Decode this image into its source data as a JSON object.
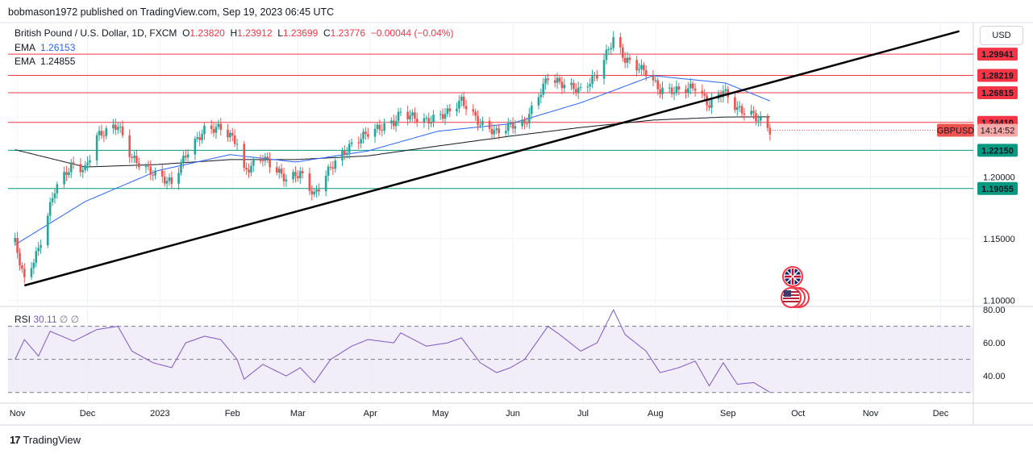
{
  "header": {
    "published": "bobmason1972 published on TradingView.com, Sep 19, 2023 06:45 UTC",
    "symbol_title": "British Pound / U.S. Dollar, 1D, FXCM",
    "o_label": "O",
    "o_value": "1.23820",
    "h_label": "H",
    "h_value": "1.23912",
    "l_label": "L",
    "l_value": "1.23699",
    "c_label": "C",
    "c_value": "1.23776",
    "change": "−0.00044 (−0.04%)",
    "ema1_label": "EMA",
    "ema1_value": "1.26153",
    "ema2_label": "EMA",
    "ema2_value": "1.24855"
  },
  "currency_button": "USD",
  "footer": {
    "brand": "TradingView",
    "logo": "17"
  },
  "rsi": {
    "label": "RSI",
    "value": "30.11",
    "na1": "∅",
    "na2": "∅"
  },
  "colors": {
    "up": "#26a69a",
    "down": "#ef5350",
    "ema_fast": "#2962ff",
    "ema_slow": "#131722",
    "resistance": "#f23645",
    "support": "#089981",
    "rsi_line": "#7e57c2",
    "rsi_band": "#ede7f6"
  },
  "icons": {
    "flag_gb": "gb-flag-icon",
    "flag_us": "us-flag-icon"
  },
  "chart_data": {
    "type": "candlestick",
    "symbol": "GBPUSD",
    "countdown": "14:14:52",
    "x_ticks": [
      "Nov",
      "Dec",
      "2023",
      "Feb",
      "Mar",
      "Apr",
      "May",
      "Jun",
      "Jul",
      "Aug",
      "Sep",
      "Oct",
      "Nov",
      "Dec"
    ],
    "y_ticks": [
      "1.20000",
      "1.15000",
      "1.10000"
    ],
    "rsi_ticks": [
      "80.00",
      "60.00",
      "40.00"
    ],
    "ylim": [
      1.095,
      1.325
    ],
    "horizontal_levels": [
      {
        "value": 1.29941,
        "label": "1.29941",
        "kind": "resistance"
      },
      {
        "value": 1.28219,
        "label": "1.28219",
        "kind": "resistance"
      },
      {
        "value": 1.26815,
        "label": "1.26815",
        "kind": "resistance"
      },
      {
        "value": 1.2441,
        "label": "1.24410",
        "kind": "resistance"
      },
      {
        "value": 1.2215,
        "label": "1.22150",
        "kind": "support"
      },
      {
        "value": 1.19055,
        "label": "1.19055",
        "kind": "support"
      }
    ],
    "trendline": {
      "start": [
        "2022-11-04",
        1.112
      ],
      "end": [
        "2023-12-09",
        1.318
      ]
    },
    "price_anchors": [
      [
        "2022-10-31",
        1.147
      ],
      [
        "2022-11-04",
        1.116
      ],
      [
        "2022-11-10",
        1.141
      ],
      [
        "2022-11-17",
        1.19
      ],
      [
        "2022-11-24",
        1.209
      ],
      [
        "2022-11-30",
        1.206
      ],
      [
        "2022-12-05",
        1.233
      ],
      [
        "2022-12-14",
        1.242
      ],
      [
        "2022-12-20",
        1.215
      ],
      [
        "2022-12-29",
        1.203
      ],
      [
        "2023-01-06",
        1.195
      ],
      [
        "2023-01-12",
        1.218
      ],
      [
        "2023-01-20",
        1.238
      ],
      [
        "2023-01-27",
        1.24
      ],
      [
        "2023-02-03",
        1.228
      ],
      [
        "2023-02-06",
        1.204
      ],
      [
        "2023-02-14",
        1.216
      ],
      [
        "2023-02-24",
        1.198
      ],
      [
        "2023-03-02",
        1.203
      ],
      [
        "2023-03-08",
        1.185
      ],
      [
        "2023-03-15",
        1.208
      ],
      [
        "2023-03-24",
        1.226
      ],
      [
        "2023-03-31",
        1.236
      ],
      [
        "2023-04-11",
        1.244
      ],
      [
        "2023-04-14",
        1.252
      ],
      [
        "2023-04-25",
        1.245
      ],
      [
        "2023-05-04",
        1.252
      ],
      [
        "2023-05-10",
        1.262
      ],
      [
        "2023-05-18",
        1.243
      ],
      [
        "2023-05-25",
        1.236
      ],
      [
        "2023-05-31",
        1.242
      ],
      [
        "2023-06-06",
        1.243
      ],
      [
        "2023-06-16",
        1.281
      ],
      [
        "2023-06-21",
        1.276
      ],
      [
        "2023-06-30",
        1.27
      ],
      [
        "2023-07-07",
        1.283
      ],
      [
        "2023-07-14",
        1.312
      ],
      [
        "2023-07-19",
        1.295
      ],
      [
        "2023-07-28",
        1.285
      ],
      [
        "2023-08-03",
        1.27
      ],
      [
        "2023-08-11",
        1.27
      ],
      [
        "2023-08-18",
        1.273
      ],
      [
        "2023-08-24",
        1.258
      ],
      [
        "2023-08-30",
        1.27
      ],
      [
        "2023-09-05",
        1.255
      ],
      [
        "2023-09-12",
        1.25
      ],
      [
        "2023-09-19",
        1.2378
      ]
    ],
    "ema_fast_anchors": [
      [
        "2022-10-31",
        1.145
      ],
      [
        "2022-11-30",
        1.18
      ],
      [
        "2022-12-31",
        1.205
      ],
      [
        "2023-01-31",
        1.218
      ],
      [
        "2023-02-28",
        1.212
      ],
      [
        "2023-03-31",
        1.221
      ],
      [
        "2023-04-30",
        1.237
      ],
      [
        "2023-05-31",
        1.243
      ],
      [
        "2023-06-30",
        1.26
      ],
      [
        "2023-07-31",
        1.282
      ],
      [
        "2023-08-31",
        1.276
      ],
      [
        "2023-09-19",
        1.2615
      ]
    ],
    "ema_slow_anchors": [
      [
        "2022-10-31",
        1.222
      ],
      [
        "2022-11-30",
        1.208
      ],
      [
        "2022-12-31",
        1.21
      ],
      [
        "2023-01-31",
        1.214
      ],
      [
        "2023-02-28",
        1.214
      ],
      [
        "2023-03-31",
        1.217
      ],
      [
        "2023-04-30",
        1.225
      ],
      [
        "2023-05-31",
        1.233
      ],
      [
        "2023-06-30",
        1.24
      ],
      [
        "2023-07-31",
        1.246
      ],
      [
        "2023-08-31",
        1.2485
      ],
      [
        "2023-09-19",
        1.2486
      ]
    ],
    "rsi_anchors": [
      [
        "2022-10-31",
        50
      ],
      [
        "2022-11-04",
        62
      ],
      [
        "2022-11-10",
        52
      ],
      [
        "2022-11-15",
        67
      ],
      [
        "2022-11-25",
        61
      ],
      [
        "2022-12-05",
        68
      ],
      [
        "2022-12-14",
        70
      ],
      [
        "2022-12-20",
        55
      ],
      [
        "2022-12-29",
        48
      ],
      [
        "2023-01-06",
        45
      ],
      [
        "2023-01-12",
        60
      ],
      [
        "2023-01-20",
        64
      ],
      [
        "2023-01-27",
        62
      ],
      [
        "2023-02-03",
        50
      ],
      [
        "2023-02-06",
        38
      ],
      [
        "2023-02-14",
        47
      ],
      [
        "2023-02-24",
        40
      ],
      [
        "2023-03-02",
        45
      ],
      [
        "2023-03-08",
        36
      ],
      [
        "2023-03-15",
        50
      ],
      [
        "2023-03-24",
        58
      ],
      [
        "2023-03-31",
        62
      ],
      [
        "2023-04-11",
        60
      ],
      [
        "2023-04-14",
        66
      ],
      [
        "2023-04-25",
        58
      ],
      [
        "2023-05-04",
        60
      ],
      [
        "2023-05-10",
        63
      ],
      [
        "2023-05-18",
        48
      ],
      [
        "2023-05-25",
        42
      ],
      [
        "2023-05-31",
        45
      ],
      [
        "2023-06-06",
        50
      ],
      [
        "2023-06-16",
        70
      ],
      [
        "2023-06-21",
        65
      ],
      [
        "2023-06-30",
        55
      ],
      [
        "2023-07-07",
        60
      ],
      [
        "2023-07-14",
        80
      ],
      [
        "2023-07-19",
        65
      ],
      [
        "2023-07-28",
        55
      ],
      [
        "2023-08-03",
        42
      ],
      [
        "2023-08-11",
        45
      ],
      [
        "2023-08-18",
        49
      ],
      [
        "2023-08-24",
        34
      ],
      [
        "2023-08-30",
        48
      ],
      [
        "2023-09-05",
        35
      ],
      [
        "2023-09-12",
        36
      ],
      [
        "2023-09-19",
        30.11
      ]
    ],
    "rsi_ylim": [
      25,
      82
    ],
    "rsi_bands": [
      70,
      50,
      30
    ]
  }
}
